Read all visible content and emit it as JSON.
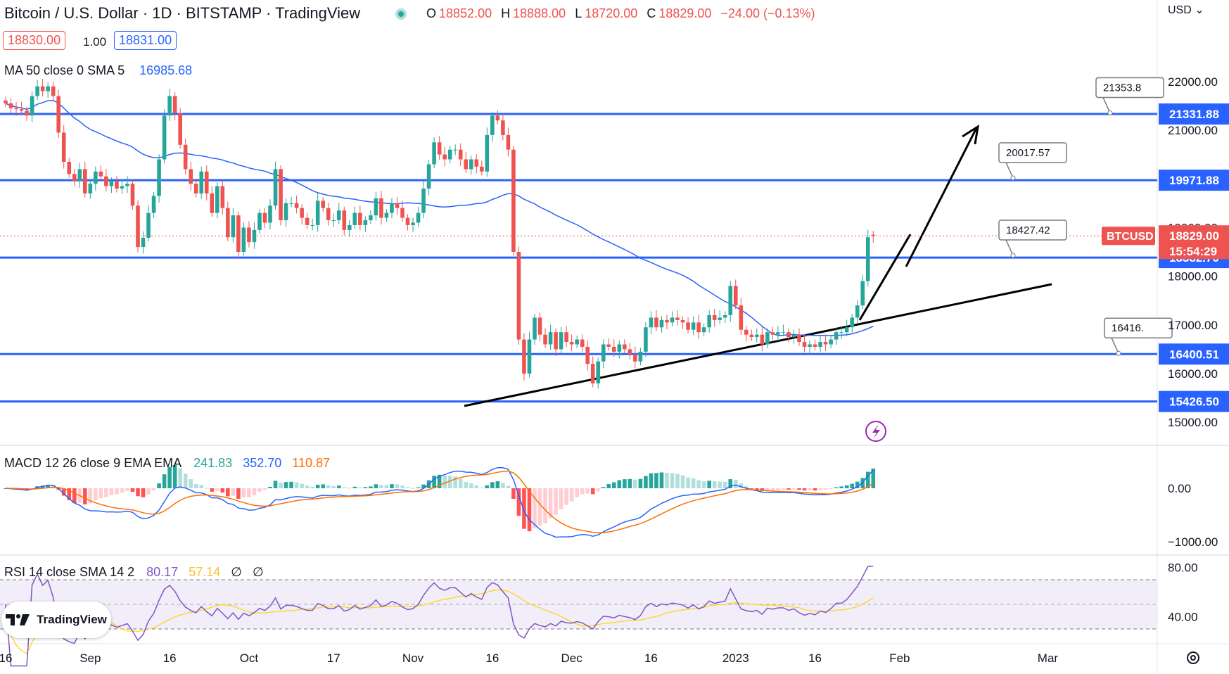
{
  "header": {
    "symbol_title": "Bitcoin / U.S. Dollar · 1D · BITSTAMP · TradingView",
    "ohlc": [
      {
        "k": "O",
        "v": "18852.00"
      },
      {
        "k": "H",
        "v": "18888.00"
      },
      {
        "k": "L",
        "v": "18720.00"
      },
      {
        "k": "C",
        "v": "18829.00"
      }
    ],
    "change": "−24.00 (−0.13%)",
    "bid": "18830.00",
    "spread": "1.00",
    "ask": "18831.00",
    "currency": "USD"
  },
  "ma_legend": {
    "label": "MA 50 close 0 SMA 5",
    "value": "16985.68"
  },
  "macd_legend": {
    "label": "MACD 12 26 close 9 EMA EMA",
    "hist": "241.83",
    "macd": "352.70",
    "signal": "110.87"
  },
  "rsi_legend": {
    "label": "RSI 14 close SMA 14 2",
    "rsi": "80.17",
    "ma": "57.14",
    "x1": "∅",
    "x2": "∅"
  },
  "logo": {
    "text": "TradingView"
  },
  "colors": {
    "up": "#26a69a",
    "down": "#ef5350",
    "level": "#2962ff",
    "ma": "#2962ff",
    "signal": "#ff6d00",
    "rsi": "#7e57c2",
    "rsi_ma": "#fdd835",
    "hist_up": "#26a69a",
    "hist_up_light": "#b2dfdb",
    "hist_down": "#ff5252",
    "hist_down_light": "#ffcdd2"
  },
  "chart_data": {
    "type": "candlestick",
    "title": "Bitcoin / U.S. Dollar · 1D · BITSTAMP",
    "ylim": [
      14500,
      22300
    ],
    "y_ticks": [
      15000,
      16000,
      17000,
      18000,
      19000,
      20000,
      21000,
      22000
    ],
    "y_tick_labels": [
      "15000.00",
      "16000.00",
      "17000.00",
      "18000.00",
      "19000.00",
      "20000.00",
      "21000.00",
      "22000.00"
    ],
    "x_ticks": [
      {
        "day": 0,
        "label": "16"
      },
      {
        "day": 16,
        "label": "Sep"
      },
      {
        "day": 31,
        "label": "16"
      },
      {
        "day": 46,
        "label": "Oct"
      },
      {
        "day": 62,
        "label": "17"
      },
      {
        "day": 77,
        "label": "Nov"
      },
      {
        "day": 92,
        "label": "16"
      },
      {
        "day": 107,
        "label": "Dec"
      },
      {
        "day": 122,
        "label": "16"
      },
      {
        "day": 138,
        "label": "2023"
      },
      {
        "day": 153,
        "label": "16"
      },
      {
        "day": 169,
        "label": "Feb"
      },
      {
        "day": 197,
        "label": "Mar"
      }
    ],
    "candle_closes": [
      21550,
      21450,
      21430,
      21400,
      21300,
      21700,
      21900,
      21800,
      21900,
      21700,
      20950,
      20350,
      20100,
      19950,
      20200,
      19700,
      19900,
      20150,
      20050,
      19850,
      19950,
      19800,
      19850,
      19900,
      19450,
      18600,
      18790,
      19300,
      19650,
      20400,
      21300,
      21700,
      21350,
      20700,
      20200,
      19900,
      19700,
      20150,
      19700,
      19300,
      19850,
      19400,
      18800,
      19250,
      18500,
      19000,
      18700,
      18950,
      19300,
      19100,
      19450,
      20200,
      19150,
      19500,
      19500,
      19400,
      19200,
      19050,
      19050,
      19550,
      19400,
      19150,
      19150,
      19350,
      18950,
      19050,
      19300,
      19050,
      19150,
      19250,
      19600,
      19200,
      19300,
      19500,
      19400,
      19200,
      19050,
      19100,
      19300,
      19800,
      20300,
      20750,
      20500,
      20400,
      20600,
      20600,
      20400,
      20200,
      20400,
      20250,
      20150,
      20900,
      21300,
      21200,
      20900,
      20600,
      18500,
      16700,
      16000,
      16700,
      17150,
      16800,
      16600,
      16850,
      16500,
      16850,
      16650,
      16600,
      16700,
      16550,
      16200,
      15800,
      16250,
      16600,
      16550,
      16450,
      16600,
      16500,
      16400,
      16250,
      16450,
      16950,
      17150,
      16950,
      17100,
      17050,
      17150,
      17100,
      17050,
      16900,
      17050,
      16850,
      16950,
      17200,
      17100,
      17150,
      17200,
      17800,
      17400,
      16900,
      16800,
      16750,
      16800,
      16600,
      16850,
      16800,
      16850,
      16850,
      16750,
      16800,
      16650,
      16550,
      16600,
      16550,
      16650,
      16600,
      16700,
      16850,
      16850,
      16950,
      17150,
      17400,
      17900,
      18800,
      18829
    ],
    "ma50_latest": 16985.68,
    "levels": [
      21331.88,
      19971.88,
      18382.7,
      16400.51,
      15426.5
    ],
    "level_tags": [
      "21331.88",
      "19971.88",
      "18382.70",
      "16400.51",
      "15426.50"
    ],
    "callouts": [
      "21353.8",
      "20017.57",
      "18427.42",
      "16416."
    ],
    "last_price": "18829.00",
    "last_symbol": "BTCUSD",
    "countdown": "15:54:29",
    "macd": {
      "yrange": [
        -1100,
        650
      ],
      "ticks": [
        0,
        -1000
      ],
      "tick_labels": [
        "0.00",
        "−1000.00"
      ]
    },
    "rsi": {
      "yrange": [
        25,
        85
      ],
      "ticks": [
        80,
        40
      ],
      "tick_labels": [
        "80.00",
        "40.00"
      ],
      "band": [
        30,
        70
      ]
    }
  }
}
